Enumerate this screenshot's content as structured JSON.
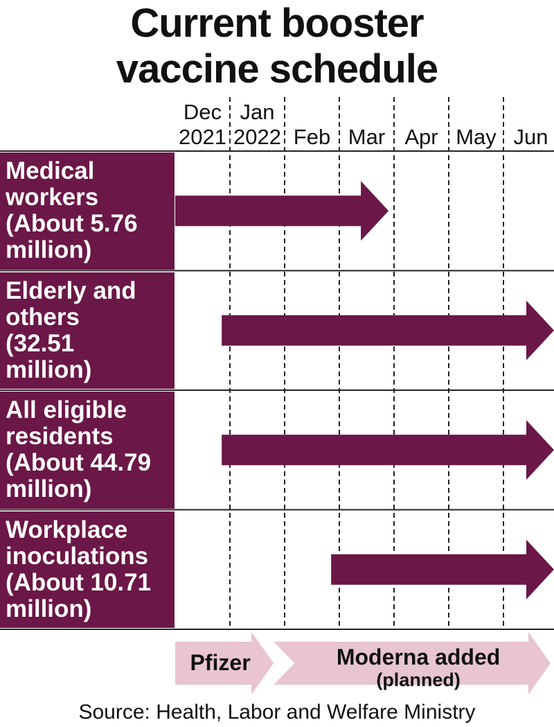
{
  "title_line1": "Current booster",
  "title_line2": "vaccine schedule",
  "source": "Source: Health, Labor and Welfare Ministry",
  "colors": {
    "bar": "#6b1747",
    "label_bg": "#6b1747",
    "vendor_bar": "#e8c5d0",
    "grid": "#222222"
  },
  "chart_data": {
    "type": "gantt",
    "months": [
      {
        "line1": "Dec",
        "line2": "2021"
      },
      {
        "line1": "Jan",
        "line2": "2022"
      },
      {
        "line1": "",
        "line2": "Feb"
      },
      {
        "line1": "",
        "line2": "Mar"
      },
      {
        "line1": "",
        "line2": "Apr"
      },
      {
        "line1": "",
        "line2": "May"
      },
      {
        "line1": "",
        "line2": "Jun"
      }
    ],
    "rows": [
      {
        "lines": [
          "Medical",
          "workers",
          "(About 5.76",
          "million)"
        ],
        "start_month": 0,
        "end_month": 3.9,
        "continues": false
      },
      {
        "lines": [
          "Elderly and",
          "others",
          "(32.51",
          "million)"
        ],
        "start_month": 0.85,
        "end_month": 7,
        "continues": true
      },
      {
        "lines": [
          "All eligible",
          "residents",
          "(About 44.79",
          "million)"
        ],
        "start_month": 0.85,
        "end_month": 7,
        "continues": true
      },
      {
        "lines": [
          "Workplace",
          "inoculations",
          "(About 10.71",
          "million)"
        ],
        "start_month": 2.85,
        "end_month": 7,
        "continues": true
      }
    ],
    "vaccines": [
      {
        "lines": [
          "Pfizer"
        ],
        "start_month": 0,
        "end_month": 1.8
      },
      {
        "lines": [
          "Moderna added",
          "(planned)"
        ],
        "start_month": 1.8,
        "end_month": 7
      }
    ]
  }
}
